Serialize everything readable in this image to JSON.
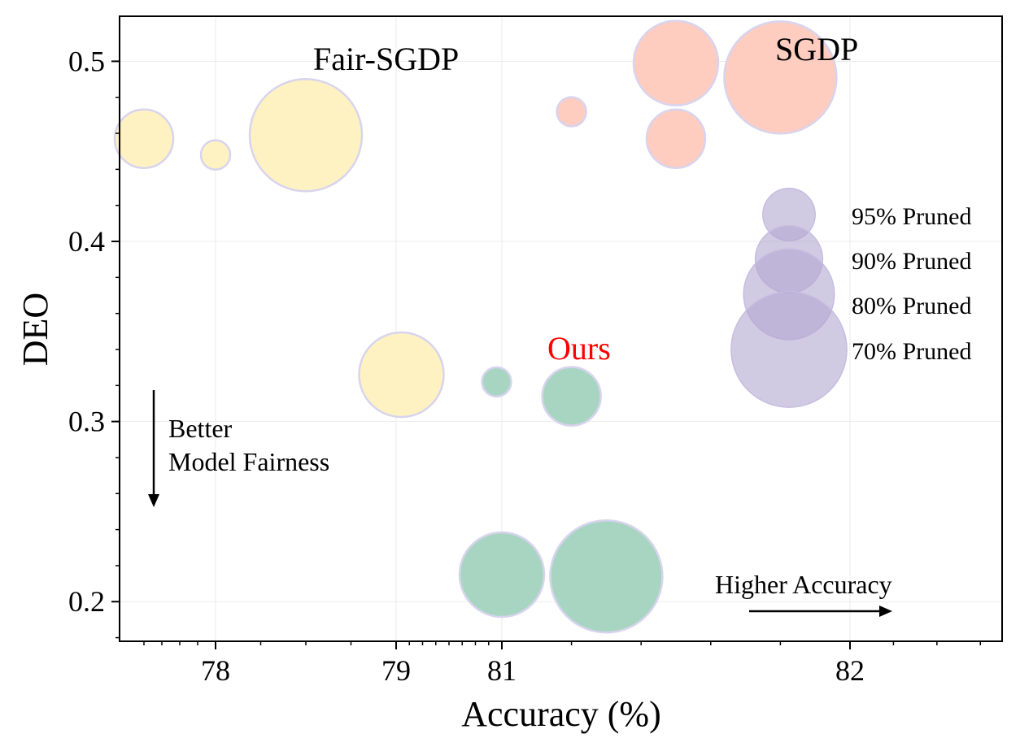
{
  "chart_data": {
    "type": "bubble",
    "xlabel": "Accuracy (%)",
    "ylabel": "DEO",
    "x_ticks": [
      "78",
      "79",
      "81",
      "82"
    ],
    "y_ticks": [
      "0.2",
      "0.3",
      "0.4",
      "0.5"
    ],
    "ylim": [
      0.178,
      0.525
    ],
    "grid": true,
    "series": [
      {
        "name": "Fair-SGDP",
        "color": "#FFF2C2",
        "points": [
          {
            "acc": "77.6",
            "deo": 0.457,
            "pruned": "90%"
          },
          {
            "acc": "78.0",
            "deo": 0.448,
            "pruned": "95%"
          },
          {
            "acc": "78.5",
            "deo": 0.459,
            "pruned": "70%"
          },
          {
            "acc": "79.1",
            "deo": 0.326,
            "pruned": "80%"
          }
        ]
      },
      {
        "name": "SGDP",
        "color": "#FFCCC0",
        "points": [
          {
            "acc": "81.2",
            "deo": 0.472,
            "pruned": "95%"
          },
          {
            "acc": "81.5",
            "deo": 0.499,
            "pruned": "80%"
          },
          {
            "acc": "81.5",
            "deo": 0.457,
            "pruned": "90%"
          },
          {
            "acc": "81.8",
            "deo": 0.491,
            "pruned": "70%"
          }
        ]
      },
      {
        "name": "Ours",
        "color": "#A8D5C2",
        "points": [
          {
            "acc": "80.9",
            "deo": 0.322,
            "pruned": "95%"
          },
          {
            "acc": "81.2",
            "deo": 0.314,
            "pruned": "90%"
          },
          {
            "acc": "81.0",
            "deo": 0.215,
            "pruned": "80%"
          },
          {
            "acc": "81.3",
            "deo": 0.214,
            "pruned": "70%"
          }
        ]
      }
    ],
    "size_legend": {
      "color": "#B3A6D1",
      "entries": [
        {
          "label": "95% Pruned",
          "pruned": "95%"
        },
        {
          "label": "90% Pruned",
          "pruned": "90%"
        },
        {
          "label": "80% Pruned",
          "pruned": "80%"
        },
        {
          "label": "70% Pruned",
          "pruned": "70%"
        }
      ]
    },
    "annotations": {
      "better_line1": "Better",
      "better_line2": "Model Fairness",
      "higher_accuracy": "Higher Accuracy"
    }
  }
}
